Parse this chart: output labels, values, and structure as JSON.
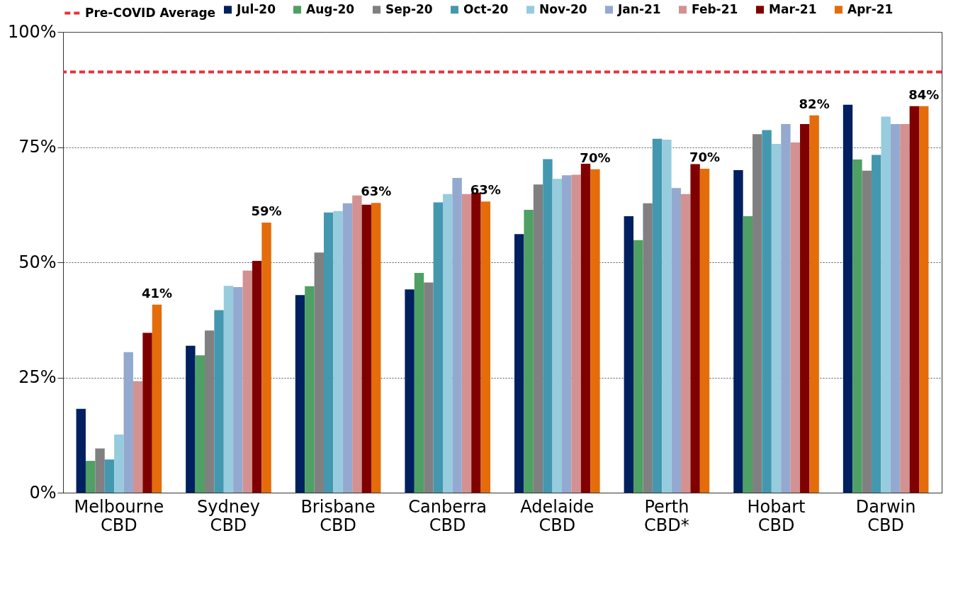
{
  "chart_data": {
    "type": "bar",
    "categories": [
      "Melbourne CBD",
      "Sydney CBD",
      "Brisbane CBD",
      "Canberra CBD",
      "Adelaide CBD",
      "Perth CBD*",
      "Hobart CBD",
      "Darwin CBD"
    ],
    "series": [
      {
        "name": "Jul-20",
        "color": "#002060",
        "values": [
          18.2,
          31.9,
          42.9,
          44.1,
          56.1,
          60.0,
          70.0,
          84.2
        ]
      },
      {
        "name": "Aug-20",
        "color": "#4ea064",
        "values": [
          6.9,
          29.8,
          44.8,
          47.7,
          61.4,
          54.8,
          60.0,
          72.3
        ]
      },
      {
        "name": "Sep-20",
        "color": "#808080",
        "values": [
          9.6,
          35.2,
          52.1,
          45.6,
          66.9,
          62.8,
          77.8,
          69.9
        ]
      },
      {
        "name": "Oct-20",
        "color": "#4398b0",
        "values": [
          7.2,
          39.6,
          60.8,
          63.0,
          72.4,
          76.8,
          78.7,
          73.3
        ]
      },
      {
        "name": "Nov-20",
        "color": "#96ccdd",
        "values": [
          12.6,
          44.9,
          61.1,
          64.8,
          68.1,
          76.6,
          75.7,
          81.6
        ]
      },
      {
        "name": "Jan-21",
        "color": "#94a9cf",
        "values": [
          30.5,
          44.6,
          62.8,
          68.3,
          68.9,
          66.1,
          80.0,
          80.0
        ]
      },
      {
        "name": "Feb-21",
        "color": "#d39191",
        "values": [
          24.2,
          48.2,
          64.5,
          64.8,
          69.0,
          64.8,
          76.0,
          80.0
        ]
      },
      {
        "name": "Mar-21",
        "color": "#800000",
        "values": [
          34.7,
          50.3,
          62.5,
          65.1,
          71.4,
          71.3,
          80.0,
          83.9
        ]
      },
      {
        "name": "Apr-21",
        "color": "#e46c0a",
        "values": [
          40.8,
          58.6,
          62.9,
          63.2,
          70.2,
          70.3,
          81.9,
          83.9
        ],
        "value_labels": [
          "41%",
          "59%",
          "63%",
          "63%",
          "70%",
          "70%",
          "82%",
          "84%"
        ]
      }
    ],
    "ylim": [
      0,
      100
    ],
    "yticks": [
      {
        "value": 0,
        "label": "0%"
      },
      {
        "value": 25,
        "label": "25%"
      },
      {
        "value": 50,
        "label": "50%"
      },
      {
        "value": 75,
        "label": "75%"
      },
      {
        "value": 100,
        "label": "100%"
      }
    ],
    "grid": "y",
    "legend": "top",
    "ref_lines": [
      {
        "axis": "y",
        "value": 91.3,
        "label": "Pre-COVID Average",
        "color": "#e8303a",
        "line_style": "dashed"
      }
    ]
  }
}
